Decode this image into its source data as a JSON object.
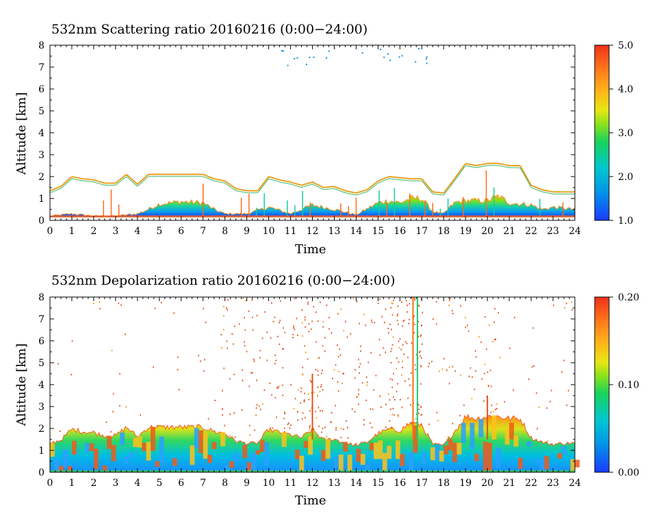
{
  "chart_data": [
    {
      "type": "heatmap",
      "title": "532nm Scattering ratio  20160216 (0:00−24:00)",
      "xlabel": "Time",
      "ylabel": "Altitude [km]",
      "xlim": [
        0,
        24
      ],
      "ylim": [
        0,
        8
      ],
      "x_ticks": [
        "0",
        "1",
        "2",
        "3",
        "4",
        "5",
        "6",
        "7",
        "8",
        "9",
        "10",
        "11",
        "12",
        "13",
        "14",
        "15",
        "16",
        "17",
        "18",
        "19",
        "20",
        "21",
        "22",
        "23",
        "24"
      ],
      "y_ticks": [
        "0",
        "1",
        "2",
        "3",
        "4",
        "5",
        "6",
        "7",
        "8"
      ],
      "colorbar": {
        "min": 1.0,
        "max": 5.0,
        "tick_labels": [
          "1.0",
          "2.0",
          "3.0",
          "4.0",
          "5.0"
        ]
      },
      "cloud_top_km": [
        [
          0,
          1.35
        ],
        [
          0.5,
          1.55
        ],
        [
          1,
          2.0
        ],
        [
          1.5,
          1.9
        ],
        [
          2,
          1.85
        ],
        [
          2.5,
          1.7
        ],
        [
          3,
          1.7
        ],
        [
          3.5,
          2.1
        ],
        [
          4,
          1.65
        ],
        [
          4.5,
          2.1
        ],
        [
          5,
          2.1
        ],
        [
          6,
          2.1
        ],
        [
          7,
          2.1
        ],
        [
          7.5,
          1.9
        ],
        [
          8,
          1.8
        ],
        [
          8.5,
          1.45
        ],
        [
          9,
          1.35
        ],
        [
          9.5,
          1.35
        ],
        [
          10,
          2.0
        ],
        [
          10.5,
          1.85
        ],
        [
          11,
          1.75
        ],
        [
          11.5,
          1.6
        ],
        [
          12,
          1.75
        ],
        [
          12.5,
          1.5
        ],
        [
          13,
          1.55
        ],
        [
          13.5,
          1.35
        ],
        [
          14,
          1.25
        ],
        [
          14.5,
          1.4
        ],
        [
          15,
          1.8
        ],
        [
          15.5,
          2.0
        ],
        [
          16,
          1.95
        ],
        [
          16.5,
          1.9
        ],
        [
          17,
          1.9
        ],
        [
          17.5,
          1.3
        ],
        [
          18,
          1.25
        ],
        [
          18.5,
          1.9
        ],
        [
          19,
          2.6
        ],
        [
          19.5,
          2.5
        ],
        [
          20,
          2.6
        ],
        [
          20.5,
          2.6
        ],
        [
          21,
          2.5
        ],
        [
          21.5,
          2.5
        ],
        [
          22,
          1.6
        ],
        [
          22.5,
          1.4
        ],
        [
          23,
          1.3
        ],
        [
          23.5,
          1.3
        ],
        [
          24,
          1.3
        ]
      ],
      "boundary_layer_top_km": [
        [
          0,
          0.2
        ],
        [
          0.5,
          0.25
        ],
        [
          1,
          0.3
        ],
        [
          2,
          0.2
        ],
        [
          3,
          0.2
        ],
        [
          4,
          0.3
        ],
        [
          4.5,
          0.5
        ],
        [
          5,
          0.75
        ],
        [
          6,
          0.85
        ],
        [
          7,
          0.8
        ],
        [
          7.5,
          0.5
        ],
        [
          8,
          0.3
        ],
        [
          9,
          0.3
        ],
        [
          10,
          0.6
        ],
        [
          11,
          0.3
        ],
        [
          12,
          0.7
        ],
        [
          13,
          0.5
        ],
        [
          14,
          0.25
        ],
        [
          15,
          0.8
        ],
        [
          15.5,
          0.9
        ],
        [
          16,
          0.8
        ],
        [
          16.5,
          1.0
        ],
        [
          17,
          1.0
        ],
        [
          17.5,
          0.4
        ],
        [
          18,
          0.3
        ],
        [
          18.5,
          0.8
        ],
        [
          19,
          0.9
        ],
        [
          20,
          0.9
        ],
        [
          20.5,
          1.1
        ],
        [
          21,
          0.8
        ],
        [
          22,
          0.7
        ],
        [
          22.5,
          0.5
        ],
        [
          23,
          0.6
        ],
        [
          24,
          0.5
        ]
      ]
    },
    {
      "type": "heatmap",
      "title": "532nm Depolarization ratio  20160216 (0:00−24:00)",
      "xlabel": "Time",
      "ylabel": "Altitude [km]",
      "xlim": [
        0,
        24
      ],
      "ylim": [
        0,
        8
      ],
      "x_ticks": [
        "0",
        "1",
        "2",
        "3",
        "4",
        "5",
        "6",
        "7",
        "8",
        "9",
        "10",
        "11",
        "12",
        "13",
        "14",
        "15",
        "16",
        "17",
        "18",
        "19",
        "20",
        "21",
        "22",
        "23",
        "24"
      ],
      "y_ticks": [
        "0",
        "1",
        "2",
        "3",
        "4",
        "5",
        "6",
        "7",
        "8"
      ],
      "colorbar": {
        "min": 0.0,
        "max": 0.2,
        "tick_labels": [
          "0.00",
          "0.10",
          "0.20"
        ]
      },
      "cloud_top_km": [
        [
          0,
          1.35
        ],
        [
          0.5,
          1.5
        ],
        [
          1,
          2.0
        ],
        [
          1.5,
          1.9
        ],
        [
          2,
          1.85
        ],
        [
          2.5,
          1.7
        ],
        [
          3,
          1.7
        ],
        [
          3.5,
          2.1
        ],
        [
          4,
          1.65
        ],
        [
          4.5,
          2.1
        ],
        [
          5,
          2.1
        ],
        [
          6,
          2.1
        ],
        [
          7,
          2.1
        ],
        [
          7.5,
          1.9
        ],
        [
          8,
          1.8
        ],
        [
          8.5,
          1.45
        ],
        [
          9,
          1.35
        ],
        [
          9.5,
          1.35
        ],
        [
          10,
          2.0
        ],
        [
          10.5,
          1.85
        ],
        [
          11,
          1.75
        ],
        [
          11.5,
          1.6
        ],
        [
          12,
          2.0
        ],
        [
          12.5,
          1.5
        ],
        [
          13,
          1.55
        ],
        [
          13.5,
          1.35
        ],
        [
          14,
          1.25
        ],
        [
          14.5,
          1.4
        ],
        [
          15,
          1.8
        ],
        [
          15.5,
          2.0
        ],
        [
          16,
          1.95
        ],
        [
          16.5,
          2.3
        ],
        [
          17,
          2.2
        ],
        [
          17.5,
          1.3
        ],
        [
          18,
          1.25
        ],
        [
          18.5,
          1.9
        ],
        [
          19,
          2.6
        ],
        [
          19.5,
          2.5
        ],
        [
          20,
          2.6
        ],
        [
          20.5,
          2.6
        ],
        [
          21,
          2.5
        ],
        [
          21.5,
          2.5
        ],
        [
          22,
          1.6
        ],
        [
          22.5,
          1.4
        ],
        [
          23,
          1.3
        ],
        [
          23.5,
          1.35
        ],
        [
          24,
          1.35
        ]
      ],
      "scatter_density_bands": [
        {
          "from": 0.0,
          "to": 7.8,
          "density": 0.05
        },
        {
          "from": 7.8,
          "to": 11.5,
          "density": 0.35
        },
        {
          "from": 11.5,
          "to": 12.5,
          "density": 0.75
        },
        {
          "from": 12.5,
          "to": 15.5,
          "density": 0.35
        },
        {
          "from": 15.5,
          "to": 17.0,
          "density": 0.85
        },
        {
          "from": 17.0,
          "to": 19.5,
          "density": 0.18
        },
        {
          "from": 19.5,
          "to": 20.5,
          "density": 0.3
        },
        {
          "from": 20.5,
          "to": 24.0,
          "density": 0.08
        }
      ]
    }
  ]
}
